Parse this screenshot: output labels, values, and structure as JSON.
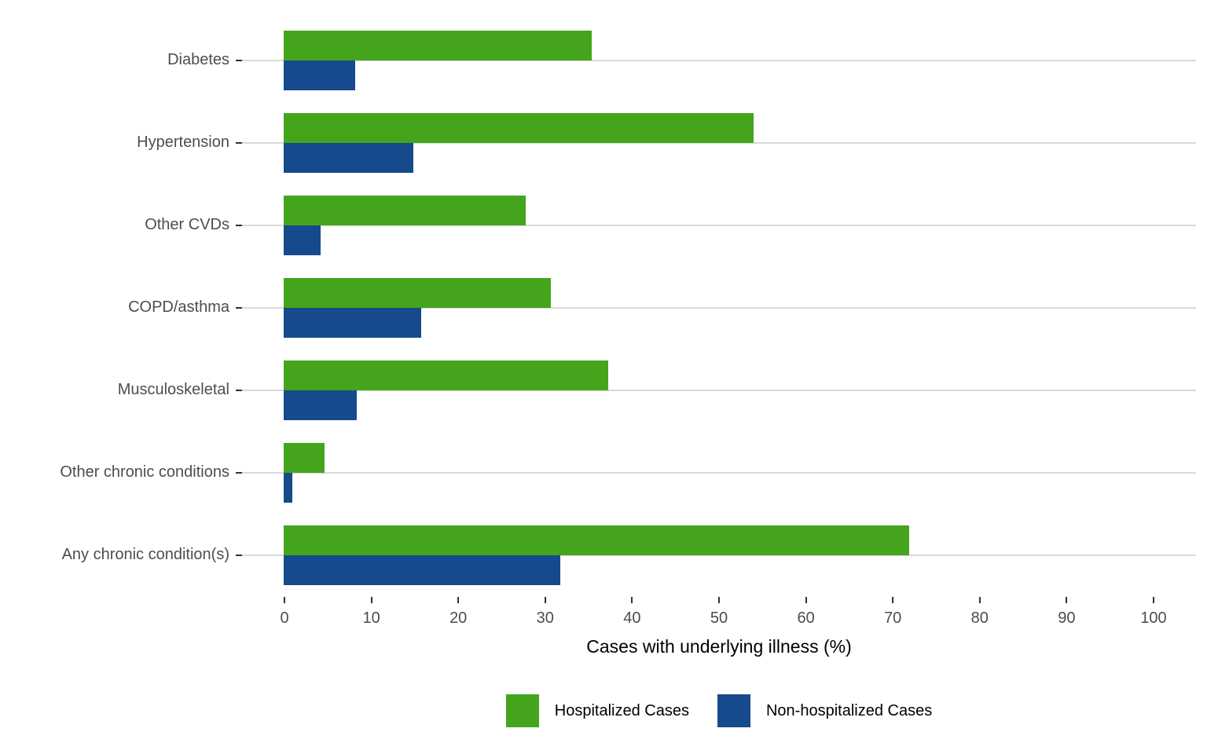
{
  "chart_data": {
    "type": "bar",
    "orientation": "horizontal",
    "title": "",
    "xlabel": "Cases with underlying illness (%)",
    "ylabel": "",
    "xlim": [
      0,
      100
    ],
    "xticks": [
      0,
      10,
      20,
      30,
      40,
      50,
      60,
      70,
      80,
      90,
      100
    ],
    "grid": "horizontal category gridlines only",
    "legend_position": "bottom-center",
    "categories": [
      "Diabetes",
      "Hypertension",
      "Other CVDs",
      "COPD/asthma",
      "Musculoskeletal",
      "Other chronic conditions",
      "Any chronic condition(s)"
    ],
    "series": [
      {
        "name": "Hospitalized Cases",
        "color": "#44a51c",
        "values": [
          35.4,
          54.1,
          27.8,
          30.7,
          37.3,
          4.7,
          72.0
        ]
      },
      {
        "name": "Non-hospitalized Cases",
        "color": "#164a8c",
        "values": [
          8.2,
          14.9,
          4.2,
          15.8,
          8.4,
          1.0,
          31.8
        ]
      }
    ],
    "gridline_color": "#d9d9d9",
    "tick_color": "#333333",
    "axis_text_color": "#4d4d4d"
  }
}
